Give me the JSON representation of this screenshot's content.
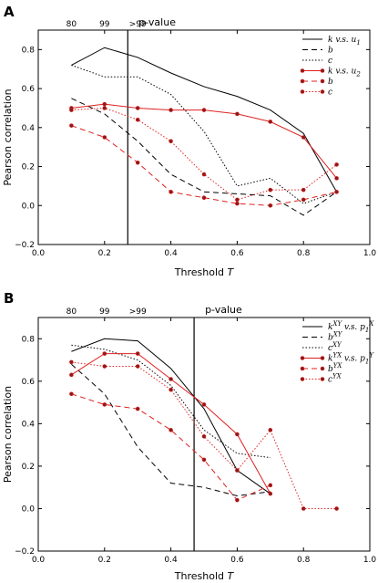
{
  "chart_data": [
    {
      "panel_label": "A",
      "type": "line",
      "xlabel": "Threshold T",
      "ylabel": "Pearson correlation",
      "xlim": [
        0.0,
        1.0
      ],
      "ylim": [
        -0.2,
        0.9
      ],
      "xticks": [
        "0.0",
        "0.2",
        "0.4",
        "0.6",
        "0.8",
        "1.0"
      ],
      "yticks": [
        "−0.2",
        "0.0",
        "0.2",
        "0.4",
        "0.6",
        "0.8"
      ],
      "top_axis": {
        "label": "p-value",
        "ticks": [
          "80",
          "99",
          ">99"
        ],
        "tick_x": [
          0.1,
          0.2,
          0.3
        ]
      },
      "vline_x": 0.27,
      "legend_position": "top-right",
      "series": [
        {
          "name": "k v.s. u₁",
          "color": "#000000",
          "dash": "",
          "marker": false,
          "x": [
            0.1,
            0.2,
            0.3,
            0.4,
            0.5,
            0.6,
            0.7,
            0.8,
            0.9
          ],
          "y": [
            0.72,
            0.81,
            0.76,
            0.68,
            0.61,
            0.56,
            0.49,
            0.37,
            0.07
          ]
        },
        {
          "name": "b",
          "color": "#000000",
          "dash": "6,4",
          "marker": false,
          "x": [
            0.1,
            0.2,
            0.3,
            0.4,
            0.5,
            0.6,
            0.7,
            0.8,
            0.9
          ],
          "y": [
            0.55,
            0.47,
            0.33,
            0.16,
            0.07,
            0.06,
            0.05,
            -0.05,
            0.07
          ]
        },
        {
          "name": "c",
          "color": "#000000",
          "dash": "1.5,2",
          "marker": false,
          "x": [
            0.1,
            0.2,
            0.3,
            0.4,
            0.5,
            0.6,
            0.7,
            0.8,
            0.9
          ],
          "y": [
            0.72,
            0.66,
            0.66,
            0.57,
            0.38,
            0.1,
            0.14,
            0.01,
            0.07
          ]
        },
        {
          "name": "k v.s. u₂",
          "color": "#e02020",
          "dash": "",
          "marker": true,
          "x": [
            0.1,
            0.2,
            0.3,
            0.4,
            0.5,
            0.6,
            0.7,
            0.8,
            0.9
          ],
          "y": [
            0.5,
            0.52,
            0.5,
            0.49,
            0.49,
            0.47,
            0.43,
            0.35,
            0.14
          ]
        },
        {
          "name": "b",
          "color": "#e02020",
          "dash": "6,4",
          "marker": true,
          "x": [
            0.1,
            0.2,
            0.3,
            0.4,
            0.5,
            0.6,
            0.7,
            0.8,
            0.9
          ],
          "y": [
            0.41,
            0.35,
            0.22,
            0.07,
            0.04,
            0.01,
            0.0,
            0.03,
            0.07
          ]
        },
        {
          "name": "c",
          "color": "#e02020",
          "dash": "1.5,2",
          "marker": true,
          "x": [
            0.1,
            0.2,
            0.3,
            0.4,
            0.5,
            0.6,
            0.7,
            0.8,
            0.9
          ],
          "y": [
            0.49,
            0.5,
            0.44,
            0.33,
            0.16,
            0.03,
            0.08,
            0.08,
            0.21
          ]
        }
      ]
    },
    {
      "panel_label": "B",
      "type": "line",
      "xlabel": "Threshold T",
      "ylabel": "Pearson correlation",
      "xlim": [
        0.0,
        1.0
      ],
      "ylim": [
        -0.2,
        0.9
      ],
      "xticks": [
        "0.0",
        "0.2",
        "0.4",
        "0.6",
        "0.8",
        "1.0"
      ],
      "yticks": [
        "−0.2",
        "0.0",
        "0.2",
        "0.4",
        "0.6",
        "0.8"
      ],
      "top_axis": {
        "label": "p-value",
        "ticks": [
          "80",
          "99",
          ">99"
        ],
        "tick_x": [
          0.1,
          0.2,
          0.3
        ]
      },
      "vline_x": 0.47,
      "legend_position": "top-right",
      "series": [
        {
          "name": "k^XY v.s. p₁^X",
          "color": "#000000",
          "dash": "",
          "marker": false,
          "x": [
            0.1,
            0.2,
            0.3,
            0.4,
            0.5,
            0.6,
            0.7
          ],
          "y": [
            0.74,
            0.8,
            0.79,
            0.66,
            0.47,
            0.18,
            0.07
          ]
        },
        {
          "name": "b^XY",
          "color": "#000000",
          "dash": "6,4",
          "marker": false,
          "x": [
            0.1,
            0.2,
            0.3,
            0.4,
            0.5,
            0.6,
            0.7
          ],
          "y": [
            0.68,
            0.54,
            0.29,
            0.12,
            0.1,
            0.06,
            0.08
          ]
        },
        {
          "name": "c^XY",
          "color": "#000000",
          "dash": "1.5,2",
          "marker": false,
          "x": [
            0.1,
            0.2,
            0.3,
            0.4,
            0.5,
            0.6,
            0.7
          ],
          "y": [
            0.77,
            0.75,
            0.7,
            0.58,
            0.37,
            0.26,
            0.24
          ]
        },
        {
          "name": "k^YX v.s. p₁^Y",
          "color": "#e02020",
          "dash": "",
          "marker": true,
          "x": [
            0.1,
            0.2,
            0.3,
            0.4,
            0.5,
            0.6,
            0.7
          ],
          "y": [
            0.63,
            0.73,
            0.73,
            0.61,
            0.49,
            0.35,
            0.07
          ]
        },
        {
          "name": "b^YX",
          "color": "#e02020",
          "dash": "6,4",
          "marker": true,
          "x": [
            0.1,
            0.2,
            0.3,
            0.4,
            0.5,
            0.6,
            0.7
          ],
          "y": [
            0.54,
            0.49,
            0.47,
            0.37,
            0.23,
            0.04,
            0.11
          ]
        },
        {
          "name": "c^YX",
          "color": "#e02020",
          "dash": "1.5,2",
          "marker": true,
          "x": [
            0.1,
            0.2,
            0.3,
            0.4,
            0.5,
            0.6,
            0.7,
            0.8,
            0.9
          ],
          "y": [
            0.69,
            0.67,
            0.67,
            0.56,
            0.34,
            0.18,
            0.37,
            0.0,
            0.0
          ]
        }
      ]
    }
  ]
}
